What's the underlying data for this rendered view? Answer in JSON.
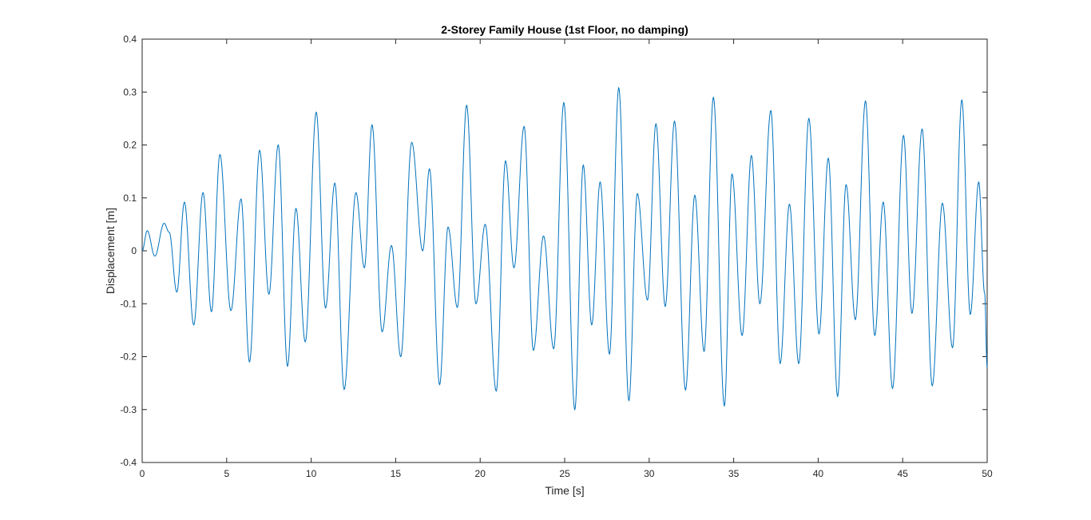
{
  "chart_data": {
    "type": "line",
    "title": "2-Storey Family House (1st Floor, no damping)",
    "xlabel": "Time [s]",
    "ylabel": "Displacement [m]",
    "xlim": [
      0,
      50
    ],
    "ylim": [
      -0.4,
      0.4
    ],
    "xticks": [
      "0",
      "5",
      "10",
      "15",
      "20",
      "25",
      "30",
      "35",
      "40",
      "45",
      "50"
    ],
    "yticks": [
      "-0.4",
      "-0.3",
      "-0.2",
      "-0.1",
      "0",
      "0.1",
      "0.2",
      "0.3",
      "0.4"
    ],
    "grid": false,
    "line_color": "#0072BD",
    "series": [
      {
        "name": "",
        "comment_points_are_extrema": true,
        "x": [
          0.0,
          0.3,
          0.75,
          1.3,
          1.6,
          2.05,
          2.5,
          3.05,
          3.6,
          4.1,
          4.6,
          5.25,
          5.85,
          6.35,
          6.95,
          7.5,
          8.05,
          8.6,
          9.1,
          9.65,
          10.3,
          10.85,
          11.4,
          11.95,
          12.65,
          13.15,
          13.6,
          14.2,
          14.75,
          15.3,
          15.95,
          16.6,
          17.0,
          17.6,
          18.1,
          18.65,
          19.2,
          19.75,
          20.3,
          20.95,
          21.5,
          22.0,
          22.6,
          23.15,
          23.75,
          24.35,
          24.95,
          25.6,
          26.1,
          26.6,
          27.1,
          27.65,
          28.2,
          28.8,
          29.3,
          29.9,
          30.4,
          30.95,
          31.5,
          32.15,
          32.7,
          33.25,
          33.8,
          34.45,
          34.9,
          35.5,
          36.05,
          36.55,
          37.2,
          37.75,
          38.3,
          38.85,
          39.45,
          40.05,
          40.6,
          41.15,
          41.65,
          42.2,
          42.8,
          43.35,
          43.85,
          44.4,
          45.05,
          45.55,
          46.15,
          46.75,
          47.35,
          47.95,
          48.5,
          49.0,
          49.5,
          49.85,
          50.0
        ],
        "y": [
          0.0,
          0.038,
          -0.01,
          0.052,
          0.035,
          -0.078,
          0.092,
          -0.14,
          0.11,
          -0.115,
          0.182,
          -0.113,
          0.098,
          -0.21,
          0.19,
          -0.082,
          0.2,
          -0.218,
          0.08,
          -0.172,
          0.262,
          -0.108,
          0.128,
          -0.262,
          0.11,
          -0.032,
          0.238,
          -0.153,
          0.01,
          -0.2,
          0.205,
          0.0,
          0.155,
          -0.253,
          0.045,
          -0.107,
          0.275,
          -0.1,
          0.05,
          -0.265,
          0.17,
          -0.032,
          0.235,
          -0.188,
          0.028,
          -0.185,
          0.28,
          -0.3,
          0.162,
          -0.14,
          0.13,
          -0.195,
          0.308,
          -0.283,
          0.108,
          -0.093,
          0.24,
          -0.105,
          0.245,
          -0.263,
          0.105,
          -0.19,
          0.29,
          -0.293,
          0.145,
          -0.16,
          0.18,
          -0.1,
          0.265,
          -0.213,
          0.088,
          -0.213,
          0.25,
          -0.157,
          0.175,
          -0.275,
          0.125,
          -0.13,
          0.283,
          -0.16,
          0.092,
          -0.26,
          0.218,
          -0.118,
          0.23,
          -0.255,
          0.09,
          -0.183,
          0.285,
          -0.12,
          0.13,
          -0.08,
          -0.22
        ]
      }
    ]
  }
}
